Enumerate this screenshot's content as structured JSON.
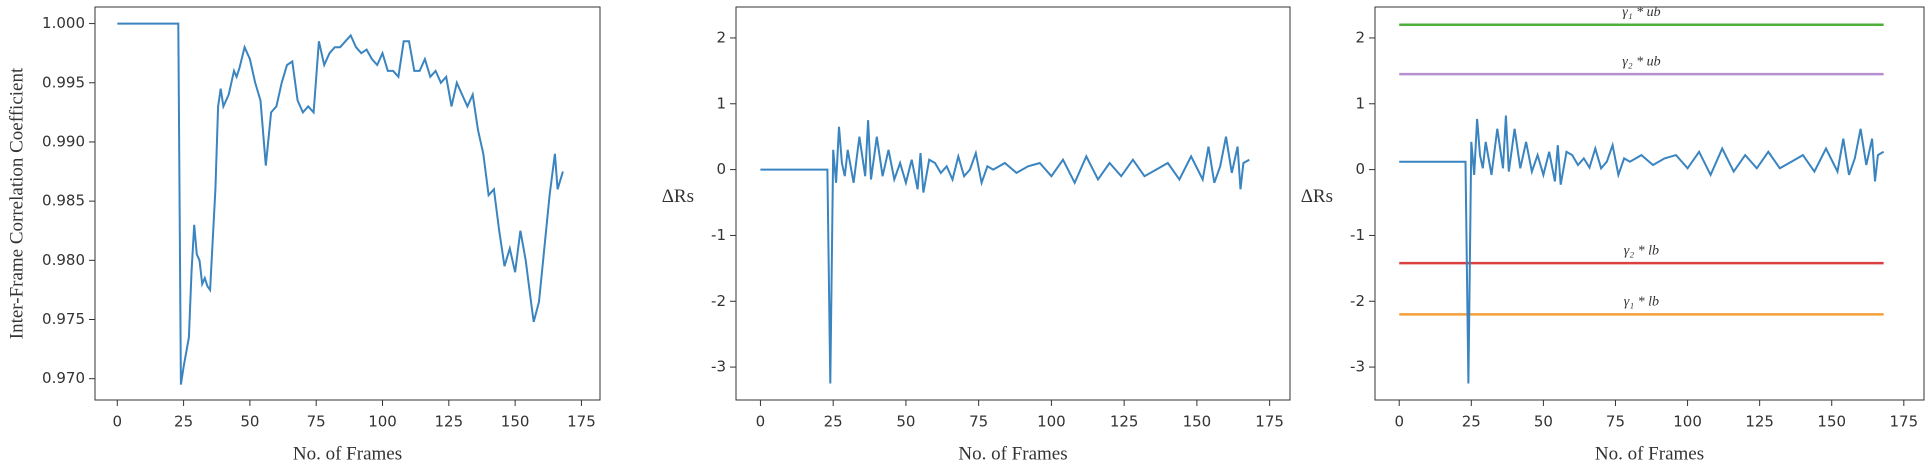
{
  "chart_data": [
    {
      "type": "line",
      "xlabel": "No. of Frames",
      "ylabel": "Inter-Frame Correlation Coefficient",
      "xlim": [
        -8.4,
        182
      ],
      "xticks": [
        0,
        25,
        50,
        75,
        100,
        125,
        150,
        175
      ],
      "ylim": [
        0.9682,
        1.0014
      ],
      "yticks": [
        {
          "value": 0.97,
          "label": "0.970"
        },
        0.975,
        {
          "value": 0.98,
          "label": "0.980"
        },
        0.985,
        {
          "value": 0.99,
          "label": "0.990"
        },
        0.995,
        {
          "value": 1.0,
          "label": "1.000"
        }
      ],
      "color": "#3a84c0",
      "x": [
        0,
        23,
        24,
        25,
        27,
        28,
        29,
        30,
        31,
        32,
        33,
        34,
        35,
        37,
        38,
        39,
        40,
        42,
        44,
        45,
        46,
        48,
        50,
        52,
        54,
        56,
        58,
        60,
        62,
        64,
        66,
        68,
        70,
        72,
        74,
        76,
        78,
        80,
        82,
        84,
        86,
        88,
        90,
        92,
        94,
        96,
        98,
        100,
        102,
        104,
        106,
        108,
        110,
        112,
        114,
        116,
        118,
        120,
        122,
        124,
        126,
        128,
        130,
        132,
        134,
        136,
        138,
        140,
        142,
        144,
        146,
        148,
        150,
        152,
        154,
        156,
        157,
        159,
        161,
        163,
        165,
        166,
        168
      ],
      "values": [
        1.0,
        1.0,
        0.9695,
        0.971,
        0.9735,
        0.979,
        0.983,
        0.9805,
        0.98,
        0.978,
        0.9785,
        0.9778,
        0.9775,
        0.986,
        0.993,
        0.9945,
        0.993,
        0.994,
        0.996,
        0.9955,
        0.9962,
        0.998,
        0.997,
        0.995,
        0.9935,
        0.988,
        0.9925,
        0.993,
        0.995,
        0.9965,
        0.9968,
        0.9935,
        0.9925,
        0.993,
        0.9925,
        0.9985,
        0.9965,
        0.9975,
        0.998,
        0.998,
        0.9985,
        0.999,
        0.998,
        0.9975,
        0.9978,
        0.997,
        0.9965,
        0.9975,
        0.996,
        0.996,
        0.9955,
        0.9985,
        0.9985,
        0.996,
        0.996,
        0.997,
        0.9955,
        0.996,
        0.995,
        0.9955,
        0.993,
        0.995,
        0.994,
        0.993,
        0.994,
        0.991,
        0.989,
        0.9855,
        0.986,
        0.9825,
        0.9795,
        0.981,
        0.979,
        0.9825,
        0.98,
        0.9765,
        0.9748,
        0.9765,
        0.981,
        0.9855,
        0.989,
        0.986,
        0.9875
      ]
    },
    {
      "type": "line",
      "xlabel": "No. of Frames",
      "ylabel": "ΔRs",
      "xlim": [
        -8.4,
        182
      ],
      "xticks": [
        0,
        25,
        50,
        75,
        100,
        125,
        150,
        175
      ],
      "ylim": [
        -3.5,
        2.47
      ],
      "yticks": [
        -3,
        -2,
        -1,
        0,
        1,
        2
      ],
      "color": "#3a84c0",
      "x": [
        0,
        22,
        23,
        24,
        25,
        26,
        27,
        28,
        29,
        30,
        32,
        34,
        36,
        37,
        38,
        40,
        42,
        44,
        46,
        48,
        50,
        52,
        54,
        55,
        56,
        58,
        60,
        62,
        64,
        66,
        68,
        70,
        72,
        74,
        76,
        78,
        80,
        84,
        88,
        92,
        96,
        100,
        104,
        108,
        112,
        116,
        120,
        124,
        128,
        132,
        136,
        140,
        144,
        148,
        152,
        154,
        156,
        158,
        160,
        162,
        164,
        165,
        166,
        168
      ],
      "values": [
        0,
        0,
        0,
        -3.25,
        0.3,
        -0.2,
        0.65,
        0.1,
        -0.1,
        0.3,
        -0.2,
        0.5,
        -0.1,
        0.75,
        -0.15,
        0.5,
        -0.1,
        0.3,
        -0.15,
        0.1,
        -0.2,
        0.15,
        -0.3,
        0.25,
        -0.35,
        0.15,
        0.1,
        -0.05,
        0.05,
        -0.15,
        0.2,
        -0.1,
        0,
        0.25,
        -0.2,
        0.05,
        0,
        0.1,
        -0.05,
        0.05,
        0.1,
        -0.1,
        0.15,
        -0.2,
        0.2,
        -0.15,
        0.1,
        -0.1,
        0.15,
        -0.1,
        0,
        0.1,
        -0.15,
        0.2,
        -0.15,
        0.35,
        -0.2,
        0.05,
        0.5,
        -0.05,
        0.35,
        -0.3,
        0.1,
        0.15
      ]
    },
    {
      "type": "line",
      "xlabel": "No. of Frames",
      "ylabel": "ΔRs",
      "xlim": [
        -8.4,
        182
      ],
      "xticks": [
        0,
        25,
        50,
        75,
        100,
        125,
        150,
        175
      ],
      "ylim": [
        -3.5,
        2.47
      ],
      "yticks": [
        -3,
        -2,
        -1,
        0,
        1,
        2
      ],
      "color": "#3a84c0",
      "x": [
        0,
        22,
        23,
        24,
        25,
        26,
        27,
        28,
        29,
        30,
        32,
        34,
        36,
        37,
        38,
        40,
        42,
        44,
        46,
        48,
        50,
        52,
        54,
        55,
        56,
        58,
        60,
        62,
        64,
        66,
        68,
        70,
        72,
        74,
        76,
        78,
        80,
        84,
        88,
        92,
        96,
        100,
        104,
        108,
        112,
        116,
        120,
        124,
        128,
        132,
        136,
        140,
        144,
        148,
        152,
        154,
        156,
        158,
        160,
        162,
        164,
        165,
        166,
        168
      ],
      "values": [
        0.12,
        0.12,
        0.12,
        -3.25,
        0.42,
        -0.08,
        0.77,
        0.22,
        0.02,
        0.42,
        -0.08,
        0.62,
        0.02,
        0.82,
        -0.03,
        0.62,
        0.02,
        0.42,
        -0.03,
        0.22,
        -0.08,
        0.27,
        -0.18,
        0.37,
        -0.23,
        0.27,
        0.22,
        0.07,
        0.17,
        0.03,
        0.32,
        0.02,
        0.12,
        0.37,
        -0.08,
        0.17,
        0.12,
        0.22,
        0.07,
        0.17,
        0.22,
        0.02,
        0.27,
        -0.08,
        0.32,
        -0.03,
        0.22,
        0.02,
        0.27,
        0.02,
        0.12,
        0.22,
        -0.03,
        0.32,
        -0.03,
        0.47,
        -0.08,
        0.17,
        0.62,
        0.07,
        0.47,
        -0.18,
        0.22,
        0.27
      ],
      "hlines": [
        {
          "name": "γ₁ * ub",
          "value": 2.2,
          "color": "#4caf3c"
        },
        {
          "name": "γ₂ * ub",
          "value": 1.45,
          "color": "#b58fd0"
        },
        {
          "name": "γ₂ * lb",
          "value": -1.42,
          "color": "#d9403f"
        },
        {
          "name": "γ₁ * lb",
          "value": -2.2,
          "color": "#f5a03c"
        }
      ]
    }
  ]
}
